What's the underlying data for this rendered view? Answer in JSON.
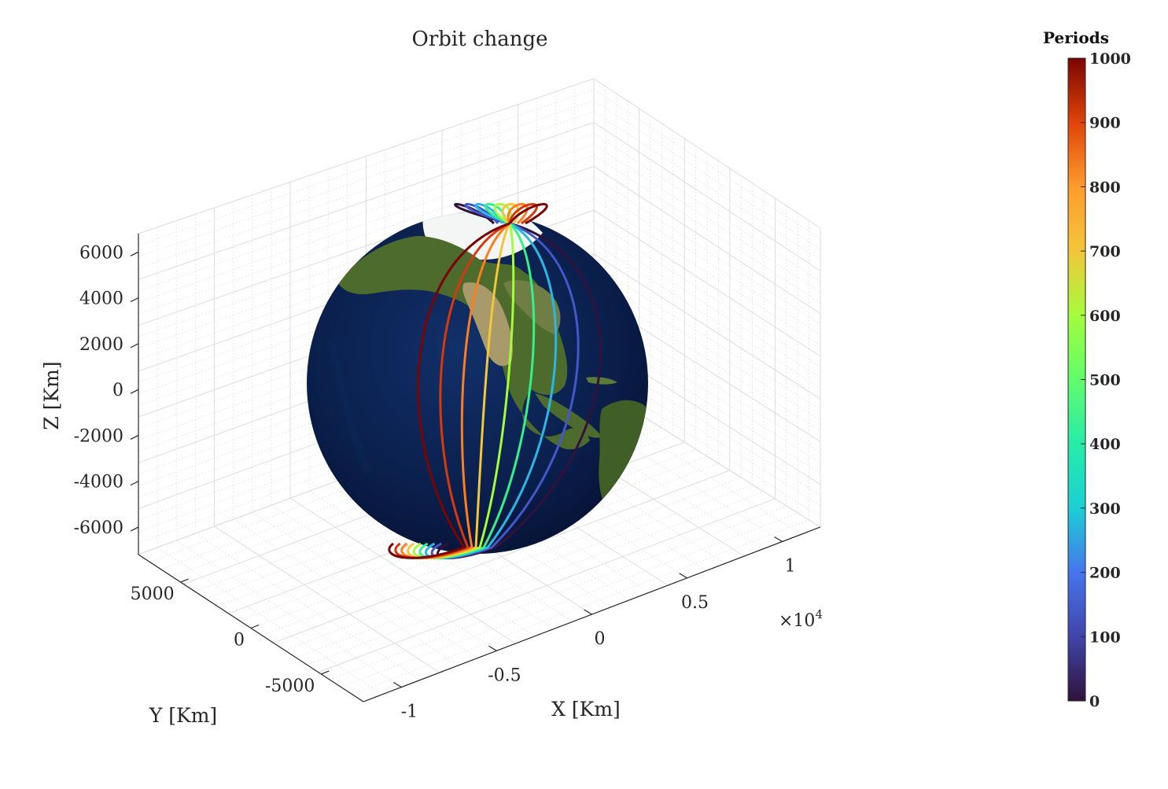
{
  "chart_data": {
    "type": "line",
    "title": "Orbit change",
    "xlabel": "X [Km]",
    "ylabel": "Y [Km]",
    "zlabel": "Z [Km]",
    "x_multiplier": "×10",
    "x_multiplier_exp": "4",
    "x_ticks": [
      "-1",
      "-0.5",
      "0",
      "0.5",
      "1"
    ],
    "y_ticks": [
      "-5000",
      "0",
      "5000"
    ],
    "z_ticks": [
      "-6000",
      "-4000",
      "-2000",
      "0",
      "2000",
      "4000",
      "6000"
    ],
    "xlim": [
      -1.2,
      1.2
    ],
    "ylim": [
      -8000,
      8000
    ],
    "zlim": [
      -7200,
      6800
    ],
    "grid": true,
    "colorbar": {
      "title": "Periods",
      "colormap": "turbo",
      "range": [
        0,
        1000
      ],
      "ticks": [
        "0",
        "100",
        "200",
        "300",
        "400",
        "500",
        "600",
        "700",
        "800",
        "900",
        "1000"
      ]
    },
    "orbits": [
      {
        "period": 0,
        "color": "#30123b"
      },
      {
        "period": 125,
        "color": "#4457c8"
      },
      {
        "period": 250,
        "color": "#2ab7e4"
      },
      {
        "period": 375,
        "color": "#36f18a"
      },
      {
        "period": 500,
        "color": "#a4fc3c"
      },
      {
        "period": 625,
        "color": "#f2c73a"
      },
      {
        "period": 750,
        "color": "#fb7e21"
      },
      {
        "period": 875,
        "color": "#d63a0b"
      },
      {
        "period": 1000,
        "color": "#7a0403"
      }
    ],
    "globe": "earth"
  }
}
